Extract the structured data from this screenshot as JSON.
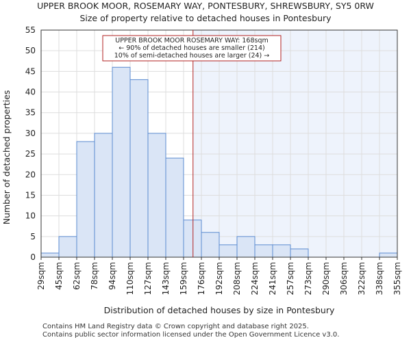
{
  "chart_data": {
    "type": "bar",
    "title": "UPPER BROOK MOOR, ROSEMARY WAY, PONTESBURY, SHREWSBURY, SY5 0RW",
    "subtitle": "Size of property relative to detached houses in Pontesbury",
    "xlabel": "Distribution of detached houses by size in Pontesbury",
    "ylabel": "Number of detached properties",
    "ylim": [
      0,
      55
    ],
    "yticks": [
      0,
      5,
      10,
      15,
      20,
      25,
      30,
      35,
      40,
      45,
      50,
      55
    ],
    "bin_edges": [
      29,
      45,
      62,
      78,
      94,
      110,
      127,
      143,
      159,
      176,
      192,
      208,
      224,
      241,
      257,
      273,
      290,
      306,
      322,
      338,
      355
    ],
    "tick_labels": [
      "29sqm",
      "45sqm",
      "62sqm",
      "78sqm",
      "94sqm",
      "110sqm",
      "127sqm",
      "143sqm",
      "159sqm",
      "176sqm",
      "192sqm",
      "208sqm",
      "224sqm",
      "241sqm",
      "257sqm",
      "273sqm",
      "290sqm",
      "306sqm",
      "322sqm",
      "338sqm",
      "355sqm"
    ],
    "values": [
      1,
      5,
      28,
      30,
      46,
      43,
      30,
      24,
      9,
      6,
      3,
      5,
      3,
      3,
      2,
      0,
      0,
      0,
      0,
      1
    ],
    "property_line_x": 168,
    "annotation": [
      "UPPER BROOK MOOR ROSEMARY WAY: 168sqm",
      "← 90% of detached houses are smaller (214)",
      "10% of semi-detached houses are larger (24) →"
    ],
    "colors": {
      "bar_fill": "#dae5f6",
      "bar_stroke": "#5b8bd0",
      "highlight_bg": "#eef3fc",
      "marker_line": "#b22222",
      "grid": "#dddddd"
    }
  },
  "footer": {
    "line1": "Contains HM Land Registry data © Crown copyright and database right 2025.",
    "line2": "Contains public sector information licensed under the Open Government Licence v3.0."
  }
}
